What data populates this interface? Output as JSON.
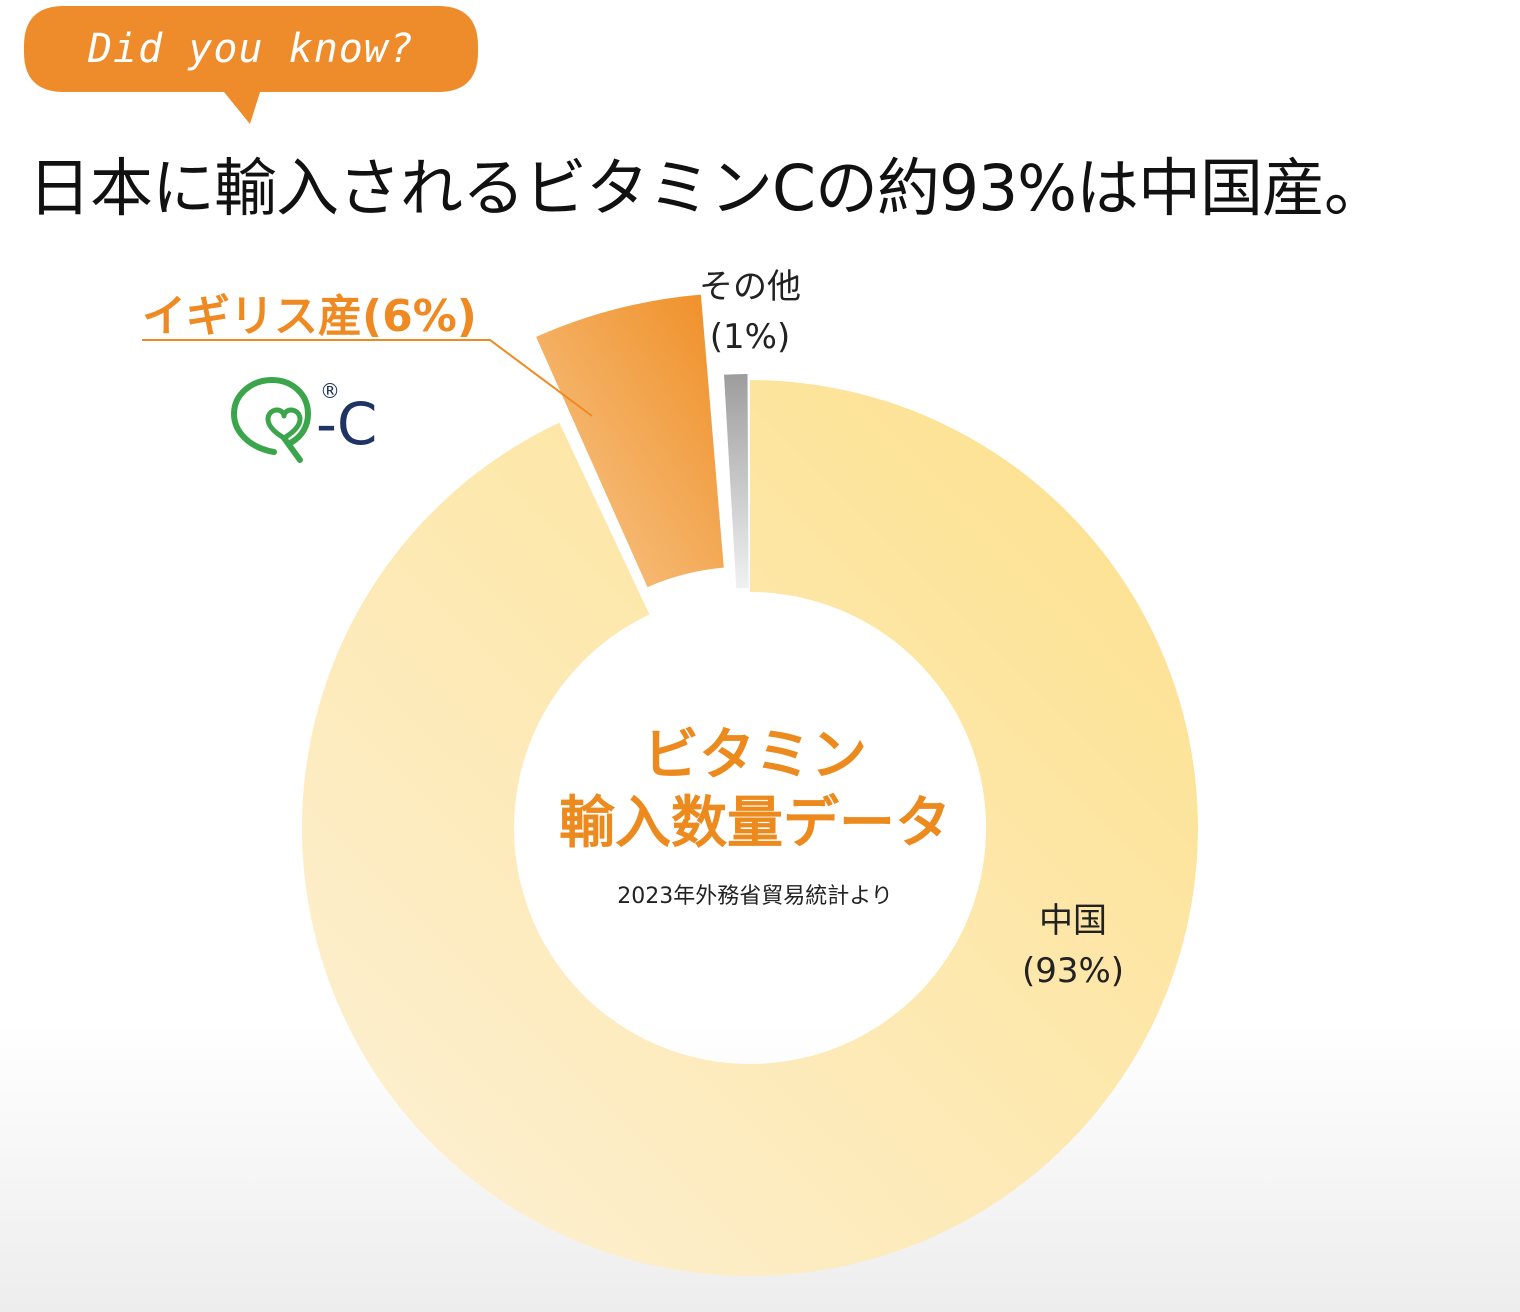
{
  "badge": {
    "label": "Did you know?"
  },
  "headline": "日本に輸入されるビタミンCの約93%は中国産。",
  "center": {
    "title_line1": "ビタミン",
    "title_line2": "輸入数量データ",
    "source": "2023年外務省貿易統計より"
  },
  "logo": {
    "text": "-C",
    "mark": "®"
  },
  "colors": {
    "badge": "#ee8b2a",
    "accent_text": "#ec8a1e",
    "china": "#fbe196",
    "uk": "#f0922c",
    "other": "#a9a9a9",
    "logo_green": "#3aa54a",
    "logo_navy": "#1f3464"
  },
  "chart_data": {
    "type": "pie",
    "categories": [
      "中国",
      "イギリス産",
      "その他"
    ],
    "values": [
      93,
      6,
      1
    ],
    "labels": {
      "china_name": "中国",
      "china_pct": "(93%)",
      "uk": "イギリス産(6%)",
      "other_name": "その他",
      "other_pct": "(1%)"
    }
  }
}
